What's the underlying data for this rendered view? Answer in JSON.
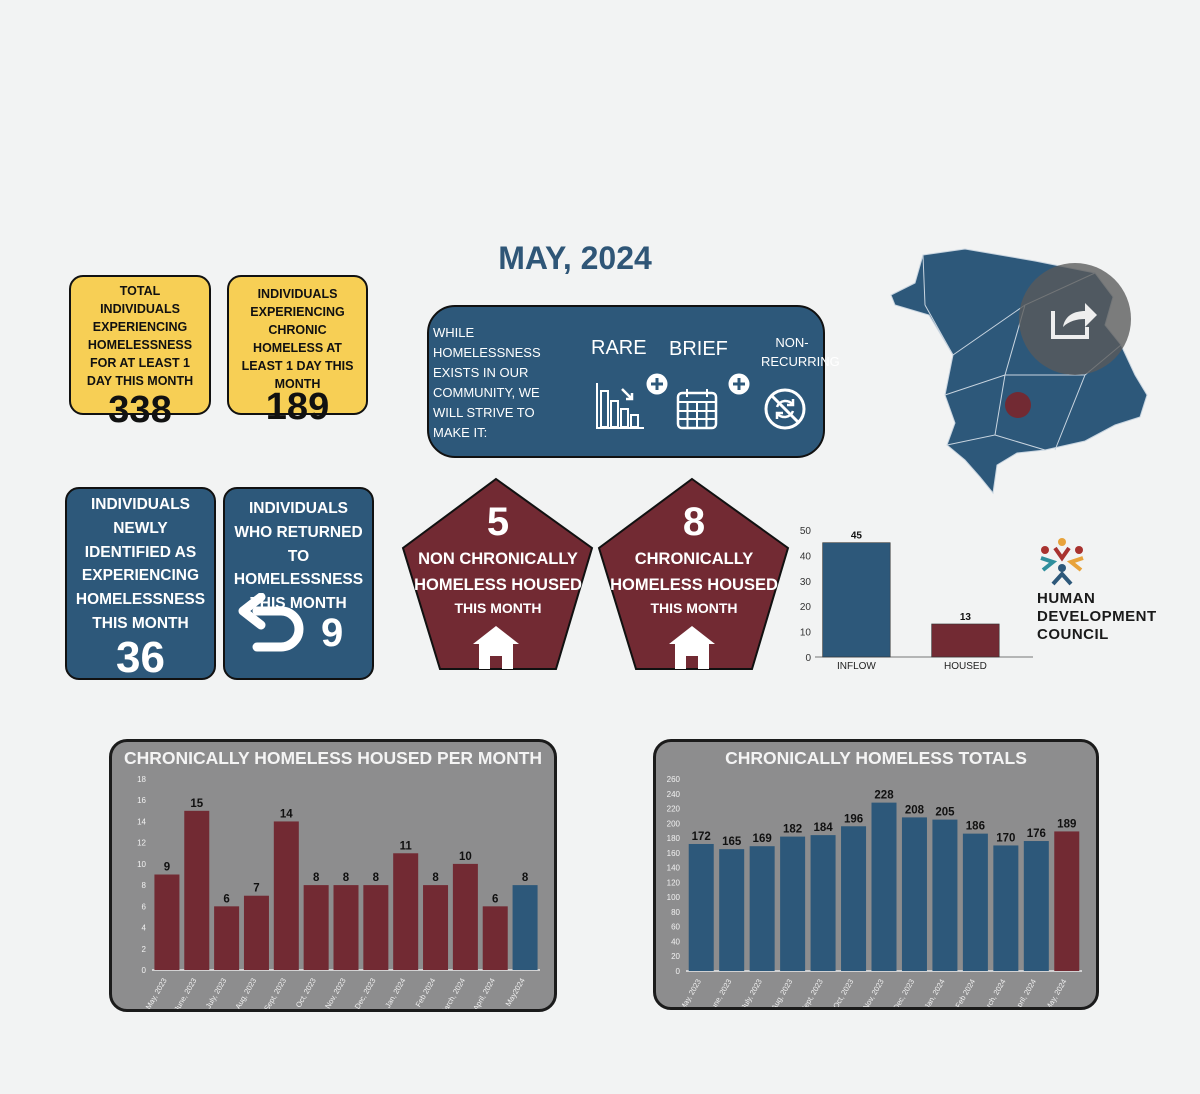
{
  "title": "MAY, 2024",
  "cards": {
    "total": {
      "label": "TOTAL INDIVIDUALS EXPERIENCING HOMELESSNESS FOR AT LEAST 1 DAY THIS MONTH",
      "value": "338"
    },
    "chronic": {
      "label": "INDIVIDUALS EXPERIENCING CHRONIC HOMELESS AT LEAST 1 DAY THIS MONTH",
      "value": "189"
    },
    "newly": {
      "label": "INDIVIDUALS NEWLY IDENTIFIED AS EXPERIENCING HOMELESSNESS THIS MONTH",
      "value": "36"
    },
    "returned": {
      "label": "INDIVIDUALS WHO RETURNED TO HOMELESSNESS THIS MONTH",
      "value": "9"
    }
  },
  "strive": {
    "text": "WHILE HOMELESSNESS EXISTS IN OUR COMMUNITY, WE WILL STRIVE TO MAKE IT:",
    "rare": "RARE",
    "brief": "BRIEF",
    "non_recurring": "NON-RECURRING"
  },
  "pentagons": {
    "non_chronic": {
      "value": "5",
      "line1": "NON CHRONICALLY",
      "line2": "HOMELESS HOUSED",
      "line3": "THIS MONTH"
    },
    "chronic": {
      "value": "8",
      "line1": "CHRONICALLY",
      "line2": "HOMELESS HOUSED",
      "line3": "THIS MONTH"
    }
  },
  "logo": {
    "line1": "HUMAN",
    "line2": "DEVELOPMENT",
    "line3": "COUNCIL"
  },
  "colors": {
    "blue": "#2d587a",
    "maroon": "#722a33",
    "yellow": "#f7cf55"
  },
  "chart_data": [
    {
      "type": "bar",
      "categories": [
        "INFLOW",
        "HOUSED"
      ],
      "values": [
        45,
        13
      ],
      "ylim": [
        0,
        50
      ],
      "yticks": [
        0,
        10,
        20,
        30,
        40,
        50
      ],
      "colors": [
        "#2d587a",
        "#722a33"
      ]
    },
    {
      "type": "bar",
      "title": "CHRONICALLY HOMELESS HOUSED PER MONTH",
      "categories": [
        "May, 2023",
        "June, 2023",
        "July, 2023",
        "Aug, 2023",
        "Sept, 2023",
        "Oct, 2023",
        "Nov, 2023",
        "Dec, 2023",
        "Jan, 2024",
        "Feb 2024",
        "March, 2024",
        "April, 2024",
        "May2024"
      ],
      "values": [
        9,
        15,
        6,
        7,
        14,
        8,
        8,
        8,
        11,
        8,
        10,
        6,
        8
      ],
      "ylim": [
        0,
        18
      ],
      "yticks": [
        0,
        2,
        4,
        6,
        8,
        10,
        12,
        14,
        16,
        18
      ],
      "highlight_last": true
    },
    {
      "type": "bar",
      "title": "CHRONICALLY HOMELESS TOTALS",
      "categories": [
        "May, 2023",
        "June, 2023",
        "July, 2023",
        "Aug, 2023",
        "Sept, 2023",
        "Oct, 2023",
        "Nov, 2023",
        "Dec, 2023",
        "Jan, 2024",
        "Feb 2024",
        "March, 2024",
        "April, 2024",
        "May, 2024"
      ],
      "values": [
        172,
        165,
        169,
        182,
        184,
        196,
        228,
        208,
        205,
        186,
        170,
        176,
        189
      ],
      "ylim": [
        0,
        260
      ],
      "yticks": [
        0,
        20,
        40,
        60,
        80,
        100,
        120,
        140,
        160,
        180,
        200,
        220,
        240,
        260
      ],
      "highlight_last": true
    }
  ]
}
